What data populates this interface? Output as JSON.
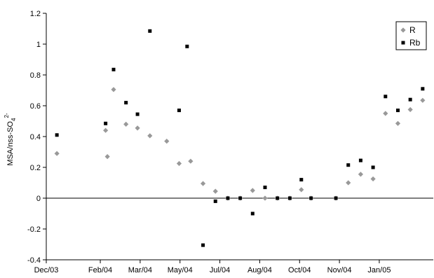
{
  "chart_data": {
    "type": "scatter",
    "ylabel_main": "MSA/nss-SO",
    "ylabel_sub": "4",
    "ylabel_sup": "2-",
    "y_ticks": [
      "-0.4",
      "-0.2",
      "0",
      "0.2",
      "0.4",
      "0.6",
      "0.8",
      "1",
      "1.2"
    ],
    "x_ticks": [
      "Dec/03",
      "Feb/04",
      "Mar/04",
      "May/04",
      "Jul/04",
      "Aug/04",
      "Oct/04",
      "Nov/04",
      "Jan/05"
    ],
    "ylim": [
      -0.4,
      1.2
    ],
    "x_range": [
      "2003-12-01",
      "2005-02-10"
    ],
    "x_tick_dates": [
      "2003-12-01",
      "2004-01-31",
      "2004-03-16",
      "2004-04-30",
      "2004-06-14",
      "2004-07-29",
      "2004-09-12",
      "2004-10-27",
      "2004-12-11"
    ],
    "grid": false,
    "zero_line": true,
    "legend_position": "top-right",
    "series": [
      {
        "name": "R",
        "marker": "diamond",
        "color": "#999999",
        "points": [
          {
            "x": "2003-12-13",
            "y": 0.29
          },
          {
            "x": "2004-02-06",
            "y": 0.44
          },
          {
            "x": "2004-02-08",
            "y": 0.27
          },
          {
            "x": "2004-02-15",
            "y": 0.705
          },
          {
            "x": "2004-02-29",
            "y": 0.48
          },
          {
            "x": "2004-03-13",
            "y": 0.455
          },
          {
            "x": "2004-03-27",
            "y": 0.405
          },
          {
            "x": "2004-04-15",
            "y": 0.37
          },
          {
            "x": "2004-04-29",
            "y": 0.225
          },
          {
            "x": "2004-05-12",
            "y": 0.24
          },
          {
            "x": "2004-05-26",
            "y": 0.095
          },
          {
            "x": "2004-06-09",
            "y": 0.045
          },
          {
            "x": "2004-06-23",
            "y": 0.0
          },
          {
            "x": "2004-07-07",
            "y": 0.0
          },
          {
            "x": "2004-07-21",
            "y": 0.05
          },
          {
            "x": "2004-08-04",
            "y": 0.0
          },
          {
            "x": "2004-08-18",
            "y": 0.0
          },
          {
            "x": "2004-09-01",
            "y": 0.0
          },
          {
            "x": "2004-09-14",
            "y": 0.055
          },
          {
            "x": "2004-09-25",
            "y": 0.0
          },
          {
            "x": "2004-10-23",
            "y": 0.0
          },
          {
            "x": "2004-11-06",
            "y": 0.1
          },
          {
            "x": "2004-11-20",
            "y": 0.155
          },
          {
            "x": "2004-12-04",
            "y": 0.125
          },
          {
            "x": "2004-12-18",
            "y": 0.55
          },
          {
            "x": "2005-01-01",
            "y": 0.485
          },
          {
            "x": "2005-01-15",
            "y": 0.575
          },
          {
            "x": "2005-01-29",
            "y": 0.635
          }
        ]
      },
      {
        "name": "Rb",
        "marker": "square",
        "color": "#000000",
        "points": [
          {
            "x": "2003-12-13",
            "y": 0.41
          },
          {
            "x": "2004-02-06",
            "y": 0.485
          },
          {
            "x": "2004-02-15",
            "y": 0.835
          },
          {
            "x": "2004-02-29",
            "y": 0.62
          },
          {
            "x": "2004-03-13",
            "y": 0.545
          },
          {
            "x": "2004-03-27",
            "y": 1.085
          },
          {
            "x": "2004-04-29",
            "y": 0.57
          },
          {
            "x": "2004-05-08",
            "y": 0.985
          },
          {
            "x": "2004-05-26",
            "y": -0.305
          },
          {
            "x": "2004-06-09",
            "y": -0.02
          },
          {
            "x": "2004-06-23",
            "y": 0.0
          },
          {
            "x": "2004-07-07",
            "y": 0.0
          },
          {
            "x": "2004-07-21",
            "y": -0.1
          },
          {
            "x": "2004-08-04",
            "y": 0.07
          },
          {
            "x": "2004-08-18",
            "y": 0.0
          },
          {
            "x": "2004-09-01",
            "y": 0.0
          },
          {
            "x": "2004-09-14",
            "y": 0.12
          },
          {
            "x": "2004-09-25",
            "y": 0.0
          },
          {
            "x": "2004-10-23",
            "y": 0.0
          },
          {
            "x": "2004-11-06",
            "y": 0.215
          },
          {
            "x": "2004-11-20",
            "y": 0.245
          },
          {
            "x": "2004-12-04",
            "y": 0.2
          },
          {
            "x": "2004-12-18",
            "y": 0.66
          },
          {
            "x": "2005-01-01",
            "y": 0.57
          },
          {
            "x": "2005-01-15",
            "y": 0.64
          },
          {
            "x": "2005-01-29",
            "y": 0.71
          }
        ]
      }
    ]
  }
}
